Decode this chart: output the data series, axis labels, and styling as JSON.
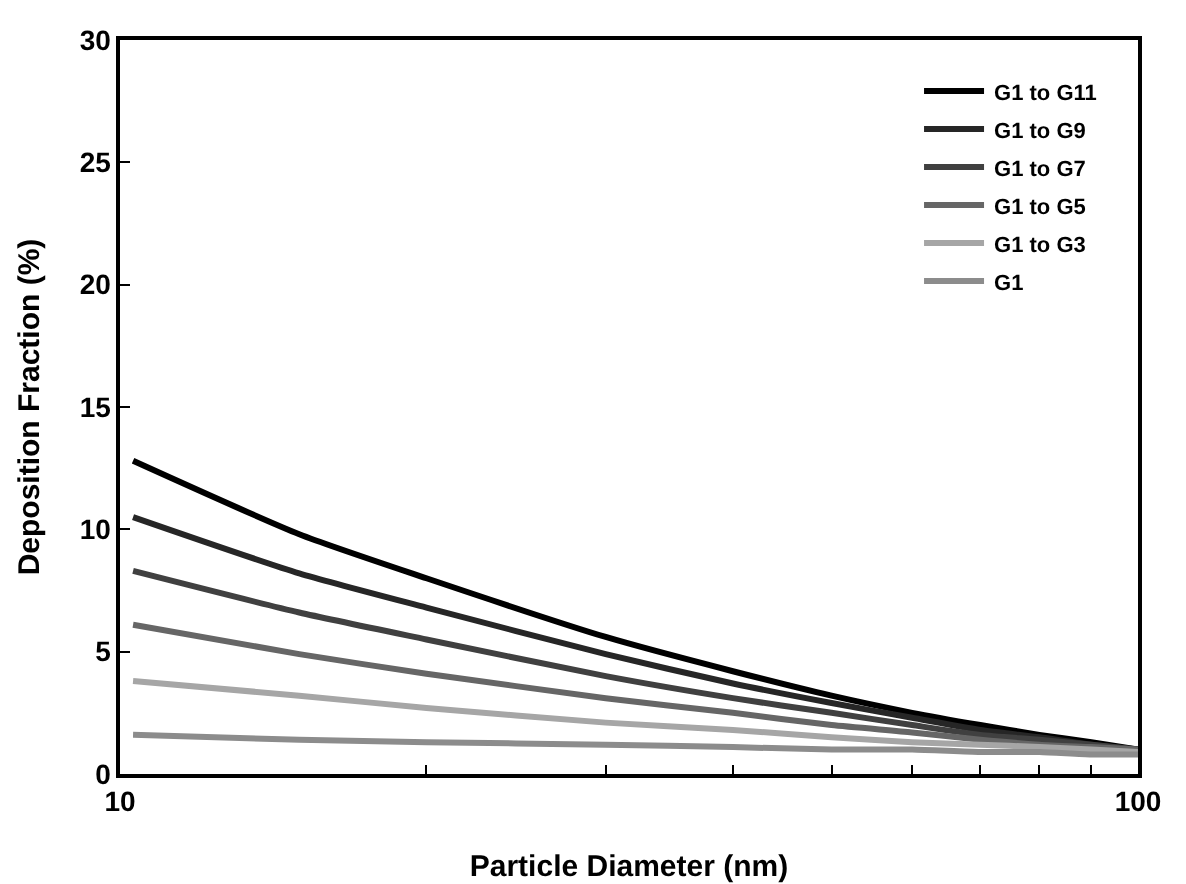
{
  "chart_data": {
    "type": "line",
    "xlabel": "Particle Diameter (nm)",
    "ylabel": "Deposition Fraction (%)",
    "log": "x",
    "grid": false,
    "legend": "top right",
    "marker": "none",
    "line_style": "solid",
    "x": [
      10.3,
      15,
      20,
      30,
      40,
      50,
      60,
      70,
      80,
      90,
      100
    ],
    "xlim": [
      10,
      100
    ],
    "xticks": [
      10,
      {
        "value": 20,
        "label": null
      },
      {
        "value": 30,
        "label": null
      },
      {
        "value": 40,
        "label": null
      },
      {
        "value": 50,
        "label": null
      },
      {
        "value": 60,
        "label": null
      },
      {
        "value": 70,
        "label": null
      },
      {
        "value": 80,
        "label": null
      },
      {
        "value": 90,
        "label": null
      },
      100
    ],
    "ylim": [
      0,
      30
    ],
    "yticks": [
      0,
      5,
      10,
      15,
      20,
      25,
      30
    ],
    "series": [
      {
        "name": "G1 to G11",
        "color": "#000000",
        "values": [
          12.8,
          9.8,
          8.0,
          5.6,
          4.2,
          3.2,
          2.5,
          2.0,
          1.6,
          1.3,
          1.0
        ]
      },
      {
        "name": "G1 to G9",
        "color": "#262626",
        "values": [
          10.5,
          8.2,
          6.8,
          4.9,
          3.7,
          2.9,
          2.3,
          1.8,
          1.5,
          1.2,
          1.0
        ]
      },
      {
        "name": "G1 to G7",
        "color": "#404040",
        "values": [
          8.3,
          6.6,
          5.5,
          4.0,
          3.1,
          2.5,
          2.0,
          1.6,
          1.4,
          1.2,
          1.0
        ]
      },
      {
        "name": "G1 to G5",
        "color": "#666666",
        "values": [
          6.1,
          4.9,
          4.1,
          3.1,
          2.5,
          2.0,
          1.7,
          1.4,
          1.2,
          1.1,
          1.0
        ]
      },
      {
        "name": "G1 to G3",
        "color": "#a6a6a6",
        "values": [
          3.8,
          3.2,
          2.7,
          2.1,
          1.8,
          1.5,
          1.3,
          1.2,
          1.1,
          1.0,
          0.9
        ]
      },
      {
        "name": "G1",
        "color": "#8c8c8c",
        "values": [
          1.6,
          1.4,
          1.3,
          1.2,
          1.1,
          1.0,
          1.0,
          0.9,
          0.9,
          0.8,
          0.8
        ]
      }
    ]
  }
}
